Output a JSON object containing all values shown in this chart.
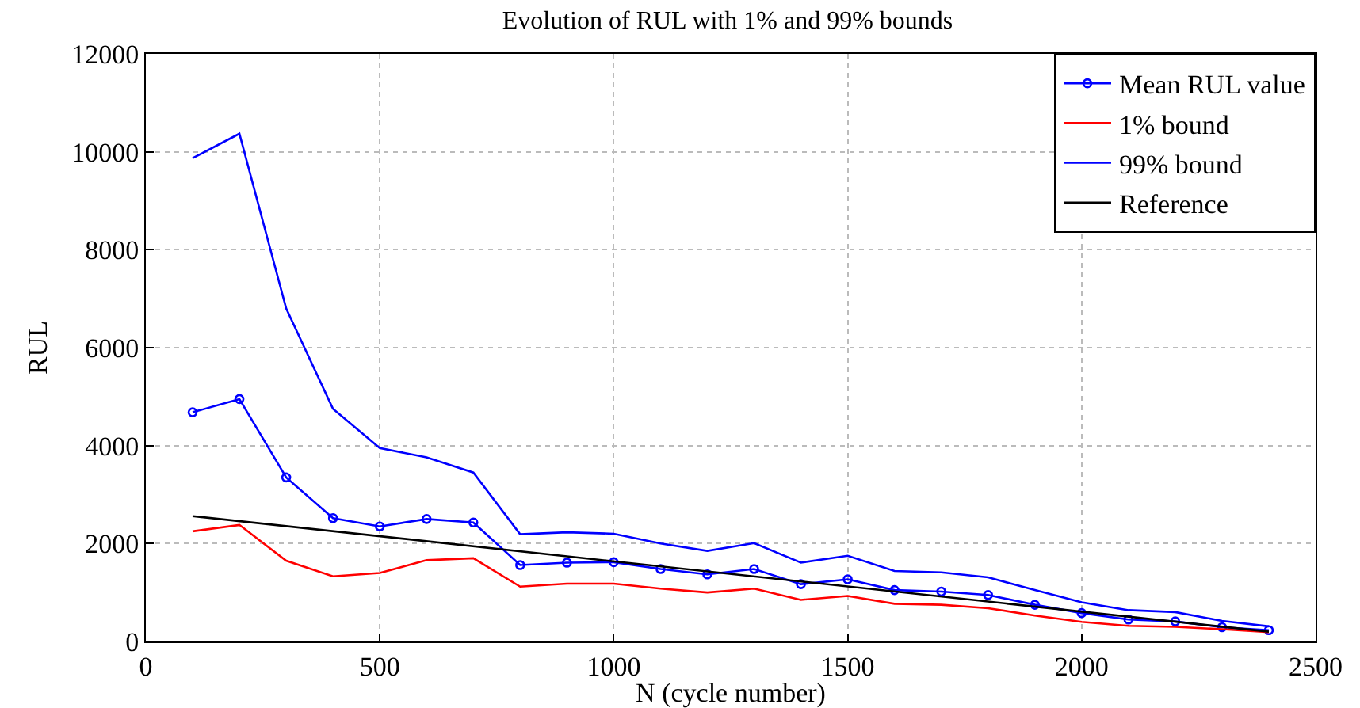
{
  "chart_data": {
    "type": "line",
    "title": "Evolution of RUL with 1% and 99% bounds",
    "xlabel": "N (cycle number)",
    "ylabel": "RUL",
    "x": [
      100,
      200,
      300,
      400,
      500,
      600,
      700,
      800,
      900,
      1000,
      1100,
      1200,
      1300,
      1400,
      1500,
      1600,
      1700,
      1800,
      1900,
      2000,
      2100,
      2200,
      2300,
      2400
    ],
    "series": [
      {
        "name": "Mean RUL value",
        "color": "#0000ff",
        "marker": "circle",
        "values": [
          4680,
          4950,
          3350,
          2520,
          2350,
          2500,
          2430,
          1560,
          1610,
          1620,
          1480,
          1370,
          1480,
          1170,
          1270,
          1050,
          1020,
          950,
          750,
          580,
          450,
          410,
          290,
          230
        ]
      },
      {
        "name": "1% bound",
        "color": "#ff0000",
        "marker": "none",
        "values": [
          2250,
          2380,
          1650,
          1330,
          1400,
          1660,
          1700,
          1120,
          1180,
          1180,
          1080,
          1000,
          1080,
          850,
          930,
          770,
          750,
          680,
          530,
          400,
          320,
          300,
          250,
          190
        ]
      },
      {
        "name": "99% bound",
        "color": "#0000ff",
        "marker": "none",
        "values": [
          9870,
          10370,
          6800,
          4750,
          3950,
          3760,
          3450,
          2190,
          2230,
          2200,
          2000,
          1850,
          2010,
          1610,
          1750,
          1440,
          1410,
          1310,
          1050,
          800,
          640,
          600,
          420,
          310
        ]
      },
      {
        "name": "Reference",
        "color": "#000000",
        "marker": "none",
        "x": [
          100,
          2400
        ],
        "values": [
          2560,
          200
        ]
      }
    ],
    "xlim": [
      0,
      2500
    ],
    "xticks": [
      0,
      500,
      1000,
      1500,
      2000,
      2500
    ],
    "ylim": [
      0,
      12000
    ],
    "yticks": [
      0,
      2000,
      4000,
      6000,
      8000,
      10000,
      12000
    ],
    "grid": true,
    "legend": "top right",
    "line_style": "solid"
  }
}
